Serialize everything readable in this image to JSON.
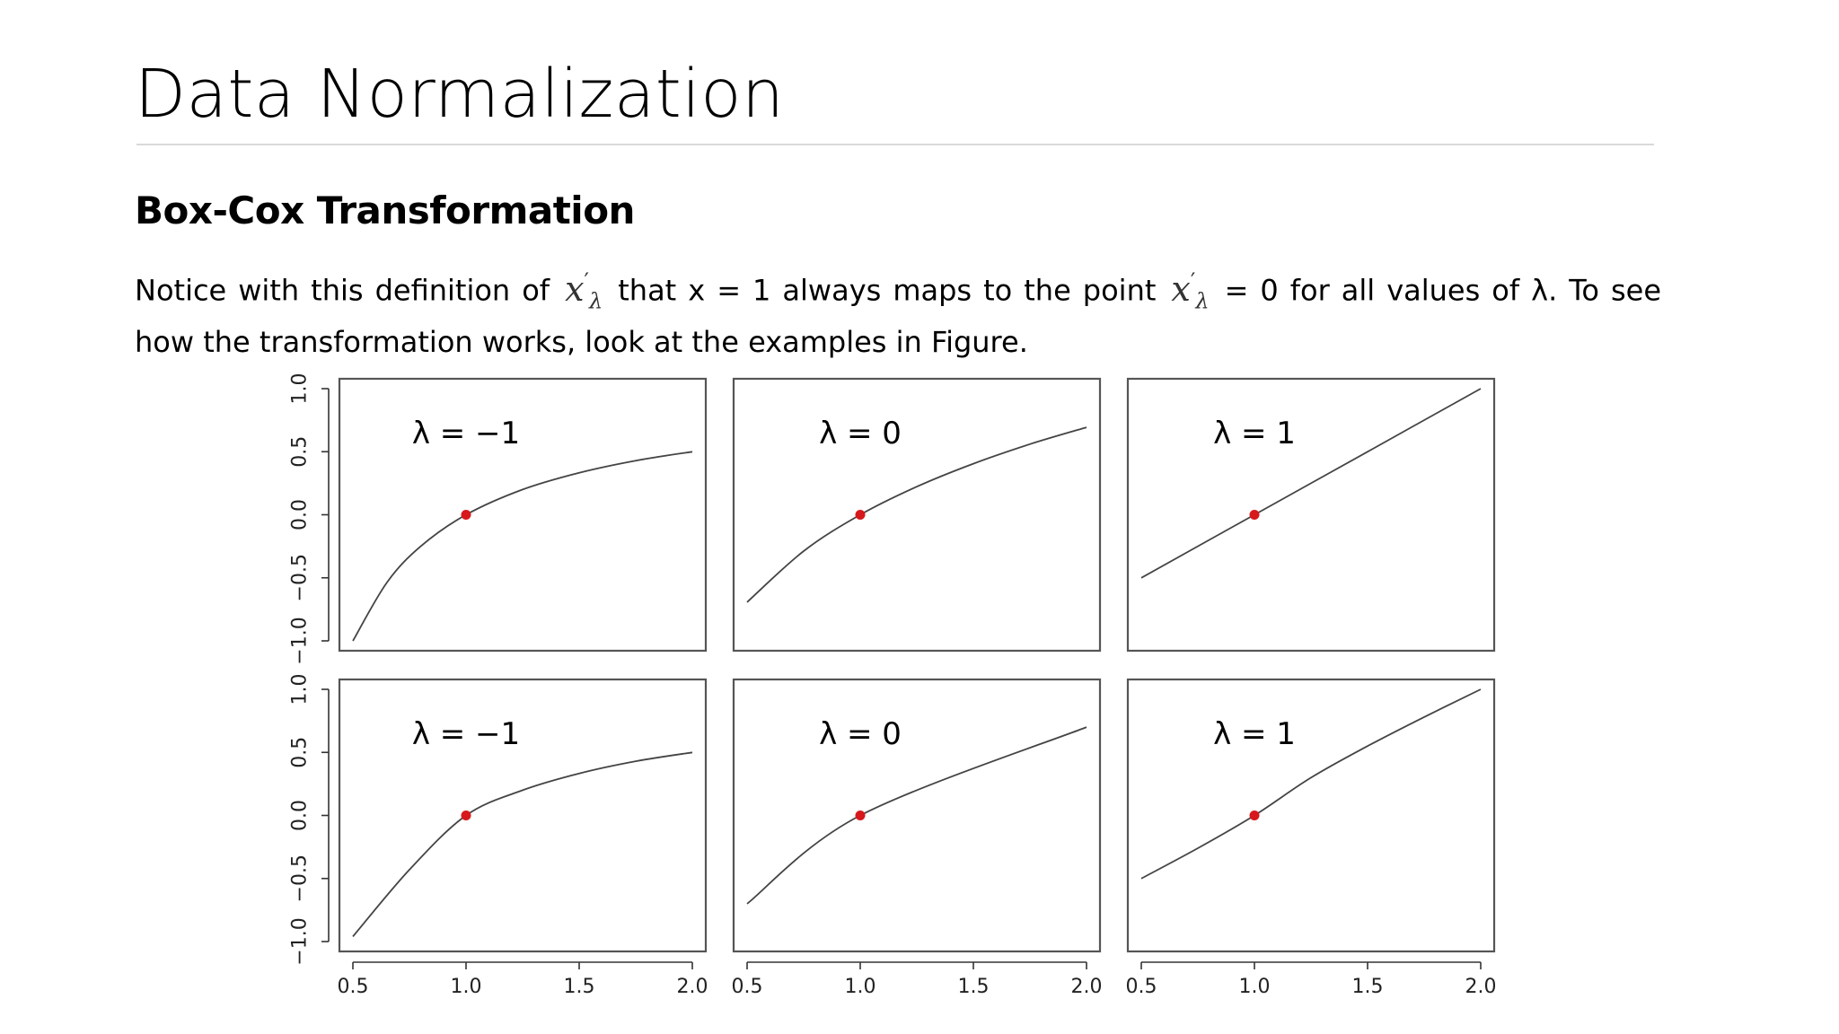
{
  "slide": {
    "title": "Data Normalization",
    "subtitle": "Box-Cox Transformation",
    "paragraph": {
      "part1": "Notice with this definition of",
      "part2": "that x = 1 always maps to the point",
      "part3": "= 0 for all values of λ. To see how the transformation works, look at the examples in Figure.",
      "symbol": "x′λ"
    }
  },
  "chart_data": {
    "type": "line",
    "layout": "2x3 panel grid",
    "x_ticks": [
      "0.5",
      "1.0",
      "1.5",
      "2.0"
    ],
    "y_ticks": [
      "−1.0",
      "−0.5",
      "0.0",
      "0.5",
      "1.0"
    ],
    "xlim": [
      0.5,
      2.0
    ],
    "ylim": [
      -1.0,
      1.0
    ],
    "panels": [
      {
        "label": "λ = −1",
        "row": 1,
        "lambda": -1,
        "x": [
          0.5,
          0.65,
          0.8,
          1.0,
          1.25,
          1.5,
          1.75,
          2.0
        ],
        "y": [
          -1.0,
          -0.538,
          -0.25,
          0.0,
          0.2,
          0.333,
          0.429,
          0.5
        ],
        "marker": [
          1.0,
          0.0
        ]
      },
      {
        "label": "λ = 0",
        "row": 1,
        "lambda": 0,
        "x": [
          0.5,
          0.75,
          1.0,
          1.25,
          1.5,
          1.75,
          2.0
        ],
        "y": [
          -0.693,
          -0.288,
          0.0,
          0.223,
          0.405,
          0.56,
          0.693
        ],
        "marker": [
          1.0,
          0.0
        ]
      },
      {
        "label": "λ = 1",
        "row": 1,
        "lambda": 1,
        "x": [
          0.5,
          1.0,
          1.5,
          2.0
        ],
        "y": [
          -0.5,
          0.0,
          0.5,
          1.0
        ],
        "marker": [
          1.0,
          0.0
        ]
      },
      {
        "label": "λ = −1",
        "row": 2,
        "lambda": -1,
        "x": [
          0.5,
          0.75,
          1.0,
          1.25,
          1.5,
          1.75,
          2.0
        ],
        "y": [
          -0.96,
          -0.43,
          0.0,
          0.2,
          0.333,
          0.43,
          0.5
        ],
        "marker": [
          1.0,
          0.0
        ]
      },
      {
        "label": "λ = 0",
        "row": 2,
        "lambda": 0,
        "x": [
          0.5,
          1.0,
          2.0
        ],
        "y": [
          -0.7,
          0.0,
          0.7
        ],
        "marker": [
          1.0,
          0.0
        ]
      },
      {
        "label": "λ = 1",
        "row": 2,
        "lambda": 1,
        "x": [
          0.5,
          0.75,
          1.0,
          1.25,
          1.5,
          1.75,
          2.0
        ],
        "y": [
          -0.5,
          -0.26,
          0.0,
          0.3,
          0.55,
          0.78,
          1.0
        ],
        "marker": [
          1.0,
          0.0
        ]
      }
    ],
    "colors": {
      "line": "#444444",
      "marker": "#d7191c",
      "frame": "#555555"
    }
  }
}
